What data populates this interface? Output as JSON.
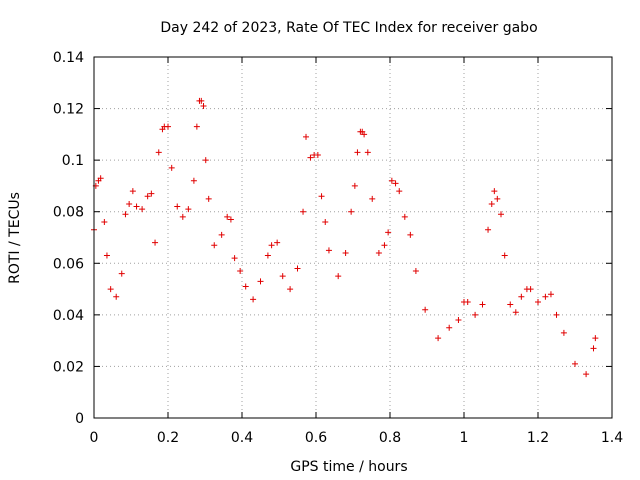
{
  "chart_data": {
    "type": "scatter",
    "title": "Day 242 of 2023, Rate Of TEC Index for receiver gabo",
    "xlabel": "GPS time / hours",
    "ylabel": "ROTI / TECUs",
    "xlim": [
      0,
      1.4
    ],
    "ylim": [
      0,
      0.14
    ],
    "xticks": [
      0,
      0.2,
      0.4,
      0.6,
      0.8,
      1,
      1.2,
      1.4
    ],
    "xtick_labels": [
      "0",
      "0.2",
      "0.4",
      "0.6",
      "0.8",
      "1",
      "1.2",
      "1.4"
    ],
    "yticks": [
      0,
      0.02,
      0.04,
      0.06,
      0.08,
      0.1,
      0.12,
      0.14
    ],
    "ytick_labels": [
      "0",
      "0.02",
      "0.04",
      "0.06",
      "0.08",
      "0.1",
      "0.12",
      "0.14"
    ],
    "grid": true,
    "marker": "+",
    "color": "#e00000",
    "series": [
      {
        "points": [
          [
            0.0,
            0.073
          ],
          [
            0.005,
            0.09
          ],
          [
            0.012,
            0.092
          ],
          [
            0.018,
            0.093
          ],
          [
            0.028,
            0.076
          ],
          [
            0.035,
            0.063
          ],
          [
            0.045,
            0.05
          ],
          [
            0.06,
            0.047
          ],
          [
            0.075,
            0.056
          ],
          [
            0.085,
            0.079
          ],
          [
            0.095,
            0.083
          ],
          [
            0.105,
            0.088
          ],
          [
            0.115,
            0.082
          ],
          [
            0.13,
            0.081
          ],
          [
            0.145,
            0.086
          ],
          [
            0.155,
            0.087
          ],
          [
            0.165,
            0.068
          ],
          [
            0.175,
            0.103
          ],
          [
            0.185,
            0.112
          ],
          [
            0.19,
            0.113
          ],
          [
            0.2,
            0.113
          ],
          [
            0.21,
            0.097
          ],
          [
            0.225,
            0.082
          ],
          [
            0.24,
            0.078
          ],
          [
            0.255,
            0.081
          ],
          [
            0.27,
            0.092
          ],
          [
            0.278,
            0.113
          ],
          [
            0.285,
            0.123
          ],
          [
            0.29,
            0.123
          ],
          [
            0.296,
            0.121
          ],
          [
            0.302,
            0.1
          ],
          [
            0.31,
            0.085
          ],
          [
            0.325,
            0.067
          ],
          [
            0.345,
            0.071
          ],
          [
            0.36,
            0.078
          ],
          [
            0.37,
            0.077
          ],
          [
            0.38,
            0.062
          ],
          [
            0.395,
            0.057
          ],
          [
            0.41,
            0.051
          ],
          [
            0.43,
            0.046
          ],
          [
            0.45,
            0.053
          ],
          [
            0.47,
            0.063
          ],
          [
            0.48,
            0.067
          ],
          [
            0.495,
            0.068
          ],
          [
            0.51,
            0.055
          ],
          [
            0.53,
            0.05
          ],
          [
            0.55,
            0.058
          ],
          [
            0.565,
            0.08
          ],
          [
            0.573,
            0.109
          ],
          [
            0.585,
            0.101
          ],
          [
            0.595,
            0.102
          ],
          [
            0.605,
            0.102
          ],
          [
            0.615,
            0.086
          ],
          [
            0.625,
            0.076
          ],
          [
            0.635,
            0.065
          ],
          [
            0.66,
            0.055
          ],
          [
            0.68,
            0.064
          ],
          [
            0.695,
            0.08
          ],
          [
            0.705,
            0.09
          ],
          [
            0.712,
            0.103
          ],
          [
            0.72,
            0.111
          ],
          [
            0.725,
            0.111
          ],
          [
            0.73,
            0.11
          ],
          [
            0.74,
            0.103
          ],
          [
            0.752,
            0.085
          ],
          [
            0.77,
            0.064
          ],
          [
            0.785,
            0.067
          ],
          [
            0.795,
            0.072
          ],
          [
            0.805,
            0.092
          ],
          [
            0.815,
            0.091
          ],
          [
            0.825,
            0.088
          ],
          [
            0.84,
            0.078
          ],
          [
            0.855,
            0.071
          ],
          [
            0.87,
            0.057
          ],
          [
            0.895,
            0.042
          ],
          [
            0.93,
            0.031
          ],
          [
            0.96,
            0.035
          ],
          [
            0.985,
            0.038
          ],
          [
            1.0,
            0.045
          ],
          [
            1.01,
            0.045
          ],
          [
            1.03,
            0.04
          ],
          [
            1.05,
            0.044
          ],
          [
            1.065,
            0.073
          ],
          [
            1.075,
            0.083
          ],
          [
            1.082,
            0.088
          ],
          [
            1.09,
            0.085
          ],
          [
            1.1,
            0.079
          ],
          [
            1.11,
            0.063
          ],
          [
            1.125,
            0.044
          ],
          [
            1.14,
            0.041
          ],
          [
            1.155,
            0.047
          ],
          [
            1.17,
            0.05
          ],
          [
            1.18,
            0.05
          ],
          [
            1.2,
            0.045
          ],
          [
            1.22,
            0.047
          ],
          [
            1.235,
            0.048
          ],
          [
            1.25,
            0.04
          ],
          [
            1.27,
            0.033
          ],
          [
            1.3,
            0.021
          ],
          [
            1.33,
            0.017
          ],
          [
            1.35,
            0.027
          ],
          [
            1.355,
            0.031
          ]
        ]
      }
    ]
  }
}
